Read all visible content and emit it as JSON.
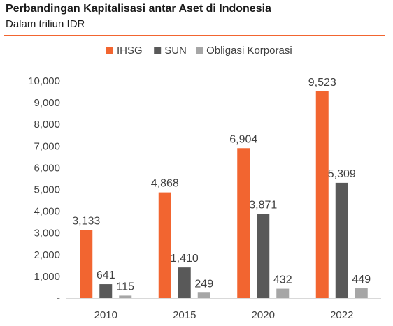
{
  "header": {
    "title": "Perbandingan Kapitalisasi antar Aset di Indonesia",
    "subtitle": "Dalam triliun IDR"
  },
  "chart_data": {
    "type": "bar",
    "title": "Perbandingan Kapitalisasi antar Aset di Indonesia",
    "subtitle": "Dalam triliun IDR",
    "categories": [
      "2010",
      "2015",
      "2020",
      "2022"
    ],
    "series": [
      {
        "name": "IHSG",
        "color": "#F26530",
        "values": [
          3133,
          4868,
          6904,
          9523
        ],
        "labels": [
          "3,133",
          "4,868",
          "6,904",
          "9,523"
        ]
      },
      {
        "name": "SUN",
        "color": "#595959",
        "values": [
          641,
          1410,
          3871,
          5309
        ],
        "labels": [
          "641",
          "1,410",
          "3,871",
          "5,309"
        ]
      },
      {
        "name": "Obligasi Korporasi",
        "color": "#A6A6A6",
        "values": [
          115,
          249,
          432,
          449
        ],
        "labels": [
          "115",
          "249",
          "432",
          "449"
        ]
      }
    ],
    "ylim": [
      0,
      10000
    ],
    "yticks": [
      0,
      1000,
      2000,
      3000,
      4000,
      5000,
      6000,
      7000,
      8000,
      9000,
      10000
    ],
    "ytick_labels": [
      "-",
      "1,000",
      "2,000",
      "3,000",
      "4,000",
      "5,000",
      "6,000",
      "7,000",
      "8,000",
      "9,000",
      "10,000"
    ],
    "legend_position": "top",
    "grid": false
  }
}
